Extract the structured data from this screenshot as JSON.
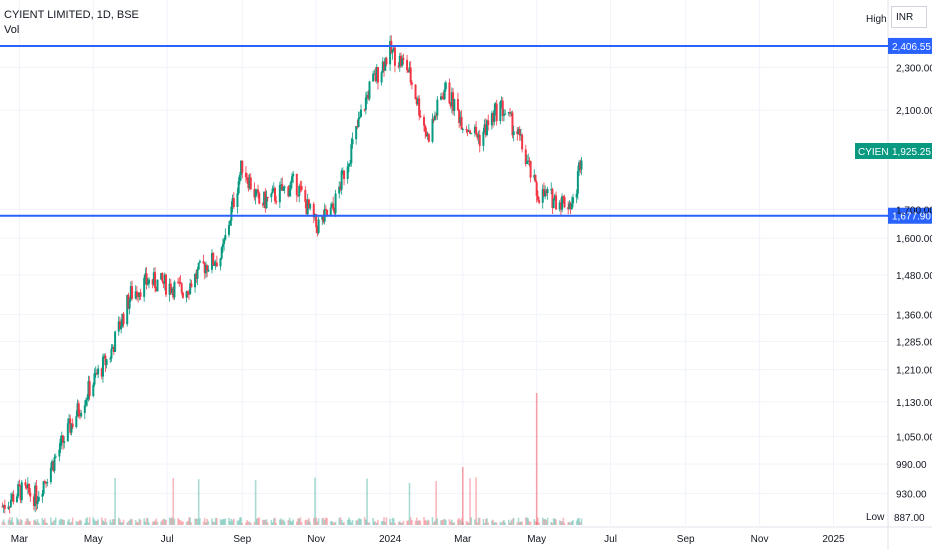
{
  "header": {
    "symbol_title": "CYIENT LIMITED, 1D, BSE",
    "volume_label": "Vol",
    "currency": "INR",
    "high_tag": "High",
    "low_tag": "Low"
  },
  "colors": {
    "up": "#089981",
    "down": "#f23645",
    "hline": "#2962ff",
    "grid": "#f0f3fa",
    "axis_text": "#131722",
    "last_price_bg": "#089981"
  },
  "chart_data": {
    "type": "candlestick",
    "title": "CYIENT LIMITED, 1D, BSE",
    "x_axis_labels": [
      "Mar",
      "May",
      "Jul",
      "Sep",
      "Nov",
      "2024",
      "Mar",
      "May",
      "Jul",
      "Sep",
      "Nov",
      "2025"
    ],
    "y_axis_ticks": [
      2300,
      2100,
      1700,
      1600,
      1480,
      1360,
      1285,
      1210,
      1130,
      1050,
      990,
      930
    ],
    "y_tick_labels": [
      "2,300.00",
      "2,100.00",
      "1,700.00",
      "1,600.00",
      "1,480.00",
      "1,360.00",
      "1,285.00",
      "1,210.00",
      "1,130.00",
      "1,050.00",
      "990.00",
      "930.00"
    ],
    "y_scale": "log",
    "ylim": [
      870,
      2500
    ],
    "grid": true,
    "horizontal_lines": [
      {
        "value": 2406.55,
        "label": "2,406.55"
      },
      {
        "value": 1677.9,
        "label": "1,677.90"
      }
    ],
    "last_price": {
      "name": "CYIENT",
      "value": 1925.25,
      "label": "1,925.25"
    },
    "low_marker": {
      "value": 887.0,
      "label": "887.00"
    },
    "price_series_close": [
      {
        "date": "2023-02-15",
        "close": 905
      },
      {
        "date": "2023-03-01",
        "close": 935
      },
      {
        "date": "2023-03-15",
        "close": 925
      },
      {
        "date": "2023-04-01",
        "close": 1010
      },
      {
        "date": "2023-04-15",
        "close": 1090
      },
      {
        "date": "2023-05-01",
        "close": 1180
      },
      {
        "date": "2023-05-15",
        "close": 1250
      },
      {
        "date": "2023-06-01",
        "close": 1420
      },
      {
        "date": "2023-06-15",
        "close": 1460
      },
      {
        "date": "2023-07-01",
        "close": 1450
      },
      {
        "date": "2023-07-15",
        "close": 1430
      },
      {
        "date": "2023-08-01",
        "close": 1510
      },
      {
        "date": "2023-08-15",
        "close": 1540
      },
      {
        "date": "2023-09-01",
        "close": 1870
      },
      {
        "date": "2023-09-15",
        "close": 1720
      },
      {
        "date": "2023-10-01",
        "close": 1760
      },
      {
        "date": "2023-10-15",
        "close": 1800
      },
      {
        "date": "2023-11-01",
        "close": 1640
      },
      {
        "date": "2023-11-15",
        "close": 1700
      },
      {
        "date": "2023-12-01",
        "close": 1950
      },
      {
        "date": "2023-12-15",
        "close": 2200
      },
      {
        "date": "2024-01-01",
        "close": 2380
      },
      {
        "date": "2024-01-15",
        "close": 2300
      },
      {
        "date": "2024-02-01",
        "close": 1980
      },
      {
        "date": "2024-02-15",
        "close": 2200
      },
      {
        "date": "2024-03-01",
        "close": 2050
      },
      {
        "date": "2024-03-15",
        "close": 1980
      },
      {
        "date": "2024-04-01",
        "close": 2120
      },
      {
        "date": "2024-04-15",
        "close": 2000
      },
      {
        "date": "2024-05-01",
        "close": 1760
      },
      {
        "date": "2024-05-15",
        "close": 1740
      },
      {
        "date": "2024-06-01",
        "close": 1720
      },
      {
        "date": "2024-06-07",
        "close": 1925.25
      }
    ]
  }
}
